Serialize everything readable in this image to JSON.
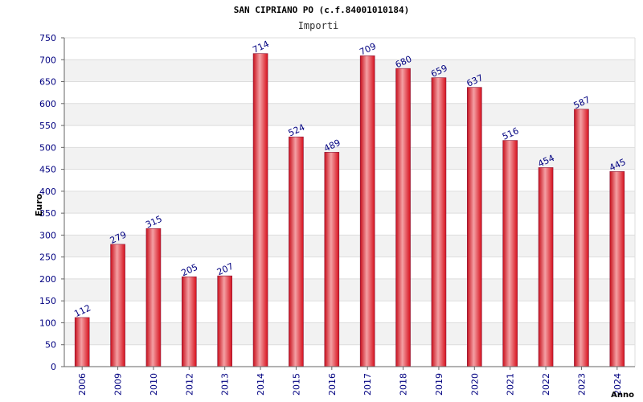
{
  "chart_data": {
    "type": "bar",
    "title": "SAN CIPRIANO PO (c.f.84001010184)",
    "subtitle": "Importi",
    "xlabel": "Anno",
    "ylabel": "Euro",
    "categories": [
      "2006",
      "2009",
      "2010",
      "2012",
      "2013",
      "2014",
      "2015",
      "2016",
      "2017",
      "2018",
      "2019",
      "2020",
      "2021",
      "2022",
      "2023",
      "2024"
    ],
    "values": [
      112,
      279,
      315,
      205,
      207,
      714,
      524,
      489,
      709,
      680,
      659,
      637,
      516,
      454,
      587,
      445
    ],
    "ylim": [
      0,
      750
    ],
    "yticks": [
      0,
      50,
      100,
      150,
      200,
      250,
      300,
      350,
      400,
      450,
      500,
      550,
      600,
      650,
      700,
      750
    ],
    "grid": true,
    "bar_color": "#e8202a",
    "axis_text_color": "#000080"
  }
}
